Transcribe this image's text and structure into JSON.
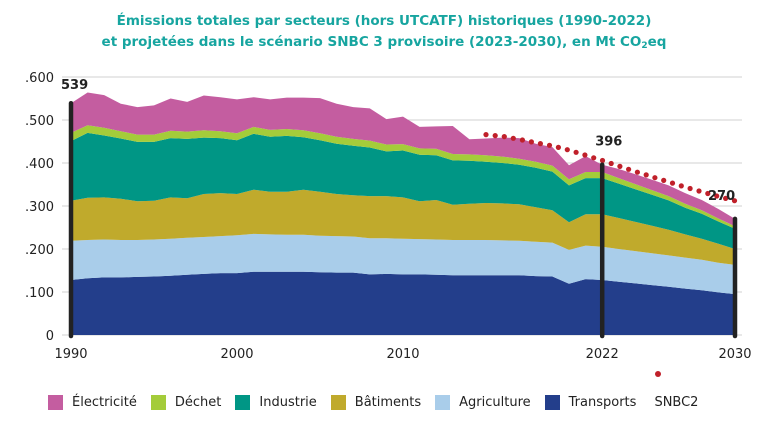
{
  "title": {
    "line1": "Émissions totales par secteurs (hors UTCATF) historiques (1990-2022)",
    "line2_pre": "et projetées dans le scénario SNBC 3 provisoire (2023-2030), en Mt CO",
    "line2_sub": "2",
    "line2_post": "eq"
  },
  "chart_data": {
    "type": "area",
    "stacked": true,
    "title": "Émissions totales par secteurs (hors UTCATF) historiques (1990-2022) et projetées dans le scénario SNBC 3 provisoire (2023-2030), en Mt CO2eq",
    "xlabel": "",
    "ylabel": "",
    "x": [
      1990,
      1991,
      1992,
      1993,
      1994,
      1995,
      1996,
      1997,
      1998,
      1999,
      2000,
      2001,
      2002,
      2003,
      2004,
      2005,
      2006,
      2007,
      2008,
      2009,
      2010,
      2011,
      2012,
      2013,
      2014,
      2015,
      2016,
      2017,
      2018,
      2019,
      2020,
      2021,
      2022,
      2023,
      2024,
      2025,
      2026,
      2027,
      2028,
      2029,
      2030
    ],
    "xlim": [
      1990,
      2030
    ],
    "ylim": [
      0,
      600
    ],
    "x_ticks": [
      "1990",
      "2000",
      "2010",
      "2022",
      "2030"
    ],
    "x_tick_values": [
      1990,
      2000,
      2010,
      2022,
      2030
    ],
    "y_ticks": [
      "0",
      ".100",
      ".200",
      ".300",
      ".400",
      ".500",
      ".600"
    ],
    "y_tick_values": [
      0,
      100,
      200,
      300,
      400,
      500,
      600
    ],
    "grid": true,
    "series": [
      {
        "name": "Transports",
        "color": "#233e8b",
        "values": [
          128,
          132,
          134,
          134,
          135,
          136,
          138,
          140,
          142,
          144,
          144,
          147,
          147,
          147,
          147,
          146,
          145,
          145,
          141,
          142,
          141,
          141,
          140,
          139,
          139,
          139,
          139,
          139,
          137,
          136,
          119,
          130,
          128,
          124,
          120,
          116,
          112,
          108,
          104,
          99,
          95
        ]
      },
      {
        "name": "Agriculture",
        "color": "#a9cdea",
        "values": [
          91,
          89,
          88,
          87,
          86,
          86,
          86,
          86,
          86,
          86,
          88,
          88,
          87,
          86,
          86,
          85,
          85,
          84,
          84,
          83,
          83,
          82,
          82,
          82,
          82,
          82,
          81,
          80,
          80,
          79,
          79,
          78,
          77,
          76,
          75,
          74,
          73,
          72,
          71,
          69,
          68
        ]
      },
      {
        "name": "Bâtiments",
        "color": "#c0aa2c",
        "values": [
          93,
          98,
          98,
          96,
          90,
          90,
          96,
          92,
          100,
          100,
          96,
          103,
          99,
          100,
          105,
          102,
          98,
          96,
          98,
          98,
          96,
          88,
          92,
          82,
          84,
          86,
          86,
          85,
          80,
          75,
          64,
          73,
          76,
          72,
          68,
          64,
          60,
          54,
          49,
          44,
          37
        ]
      },
      {
        "name": "Industrie",
        "color": "#009685",
        "values": [
          139,
          151,
          144,
          140,
          138,
          137,
          138,
          138,
          131,
          128,
          125,
          130,
          128,
          130,
          122,
          120,
          117,
          115,
          113,
          104,
          109,
          108,
          104,
          103,
          100,
          96,
          94,
          92,
          92,
          90,
          86,
          84,
          84,
          80,
          76,
          72,
          68,
          62,
          58,
          52,
          47
        ]
      },
      {
        "name": "Déchet",
        "color": "#a4cc3a",
        "values": [
          19,
          18,
          18,
          17,
          17,
          17,
          17,
          17,
          17,
          16,
          16,
          16,
          16,
          16,
          16,
          16,
          16,
          16,
          16,
          16,
          15,
          15,
          15,
          15,
          15,
          15,
          15,
          14,
          14,
          14,
          14,
          14,
          14,
          13,
          12,
          11,
          10,
          9,
          8,
          7,
          6
        ]
      },
      {
        "name": "Électricité",
        "color": "#c45da0",
        "values": [
          69,
          76,
          76,
          64,
          64,
          68,
          75,
          69,
          81,
          79,
          79,
          69,
          71,
          73,
          76,
          82,
          77,
          74,
          75,
          59,
          64,
          50,
          52,
          65,
          35,
          39,
          44,
          48,
          42,
          43,
          33,
          37,
          17,
          21,
          23,
          24,
          25,
          25,
          24,
          22,
          17
        ]
      }
    ],
    "reference_line": {
      "name": "SNBC2",
      "color": "#c0202a",
      "style": "dotted",
      "x": [
        2015,
        2016,
        2017,
        2018,
        2019,
        2020,
        2021,
        2022,
        2023,
        2024,
        2025,
        2026,
        2027,
        2028,
        2029,
        2030
      ],
      "values": [
        466,
        462,
        455,
        447,
        440,
        430,
        418,
        406,
        393,
        380,
        368,
        356,
        344,
        333,
        322,
        312
      ]
    },
    "markers": [
      {
        "x": 1990,
        "label": "539",
        "value": 539
      },
      {
        "x": 2022,
        "label": "396",
        "value": 396
      },
      {
        "x": 2030,
        "label": "270",
        "value": 270
      }
    ],
    "legend": {
      "placement": "bottom",
      "entries": [
        "Électricité",
        "Déchet",
        "Industrie",
        "Bâtiments",
        "Agriculture",
        "Transports",
        "SNBC2"
      ]
    }
  },
  "legend": {
    "items": [
      {
        "label": "Électricité",
        "color": "#c45da0"
      },
      {
        "label": "Déchet",
        "color": "#a4cc3a"
      },
      {
        "label": "Industrie",
        "color": "#009685"
      },
      {
        "label": "Bâtiments",
        "color": "#c0aa2c"
      },
      {
        "label": "Agriculture",
        "color": "#a9cdea"
      },
      {
        "label": "Transports",
        "color": "#233e8b"
      }
    ],
    "snbc_label": "SNBC2"
  }
}
